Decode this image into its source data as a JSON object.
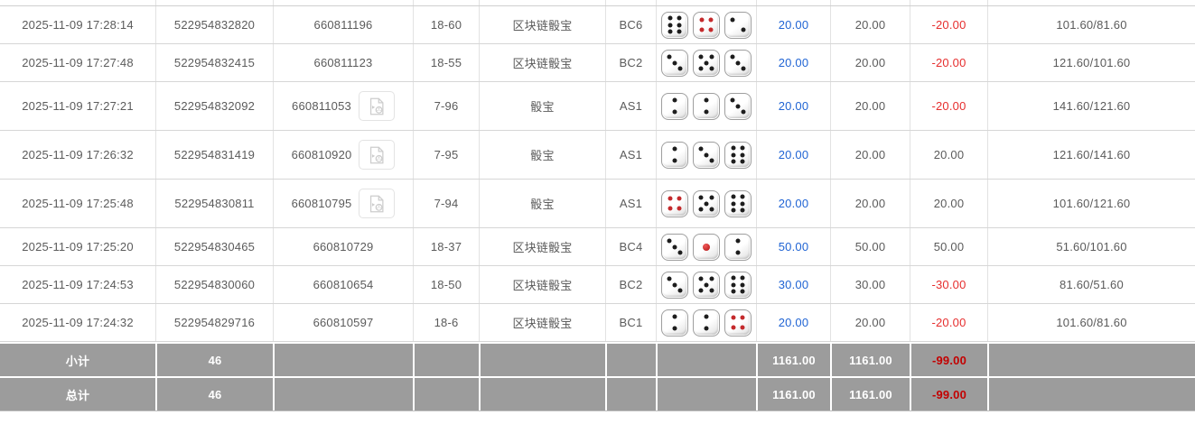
{
  "colors": {
    "link_blue": "#2064d4",
    "loss_red": "#e62e2e",
    "summary_bg": "#9c9c9c",
    "summary_loss_red": "#c30000",
    "grid_line": "#d6d6d6"
  },
  "icons": {
    "video_replay": "film-file-icon"
  },
  "table": {
    "rows": [
      {
        "time": "2025-11-09 17:28:14",
        "bet_id": "522954832820",
        "round_id": "660811196",
        "has_video": false,
        "period": "18-60",
        "game": "区块链骰宝",
        "table_code": "BC6",
        "dice": [
          "6",
          "4",
          "2d"
        ],
        "bet": "20.00",
        "valid": "20.00",
        "win_loss": "-20.00",
        "balance": "101.60/81.60"
      },
      {
        "time": "2025-11-09 17:27:48",
        "bet_id": "522954832415",
        "round_id": "660811123",
        "has_video": false,
        "period": "18-55",
        "game": "区块链骰宝",
        "table_code": "BC2",
        "dice": [
          "3",
          "5",
          "3"
        ],
        "bet": "20.00",
        "valid": "20.00",
        "win_loss": "-20.00",
        "balance": "121.60/101.60"
      },
      {
        "time": "2025-11-09 17:27:21",
        "bet_id": "522954832092",
        "round_id": "660811053",
        "has_video": true,
        "period": "7-96",
        "game": "骰宝",
        "table_code": "AS1",
        "dice": [
          "2",
          "2",
          "3"
        ],
        "bet": "20.00",
        "valid": "20.00",
        "win_loss": "-20.00",
        "balance": "141.60/121.60"
      },
      {
        "time": "2025-11-09 17:26:32",
        "bet_id": "522954831419",
        "round_id": "660810920",
        "has_video": true,
        "period": "7-95",
        "game": "骰宝",
        "table_code": "AS1",
        "dice": [
          "2",
          "3",
          "6"
        ],
        "bet": "20.00",
        "valid": "20.00",
        "win_loss": "20.00",
        "balance": "121.60/141.60"
      },
      {
        "time": "2025-11-09 17:25:48",
        "bet_id": "522954830811",
        "round_id": "660810795",
        "has_video": true,
        "period": "7-94",
        "game": "骰宝",
        "table_code": "AS1",
        "dice": [
          "4",
          "5",
          "6"
        ],
        "bet": "20.00",
        "valid": "20.00",
        "win_loss": "20.00",
        "balance": "101.60/121.60"
      },
      {
        "time": "2025-11-09 17:25:20",
        "bet_id": "522954830465",
        "round_id": "660810729",
        "has_video": false,
        "period": "18-37",
        "game": "区块链骰宝",
        "table_code": "BC4",
        "dice": [
          "3",
          "1",
          "2"
        ],
        "bet": "50.00",
        "valid": "50.00",
        "win_loss": "50.00",
        "balance": "51.60/101.60"
      },
      {
        "time": "2025-11-09 17:24:53",
        "bet_id": "522954830060",
        "round_id": "660810654",
        "has_video": false,
        "period": "18-50",
        "game": "区块链骰宝",
        "table_code": "BC2",
        "dice": [
          "3",
          "5",
          "6"
        ],
        "bet": "30.00",
        "valid": "30.00",
        "win_loss": "-30.00",
        "balance": "81.60/51.60"
      },
      {
        "time": "2025-11-09 17:24:32",
        "bet_id": "522954829716",
        "round_id": "660810597",
        "has_video": false,
        "period": "18-6",
        "game": "区块链骰宝",
        "table_code": "BC1",
        "dice": [
          "2",
          "2",
          "4"
        ],
        "bet": "20.00",
        "valid": "20.00",
        "win_loss": "-20.00",
        "balance": "101.60/81.60"
      }
    ],
    "summary_rows": [
      {
        "label": "小计",
        "count": "46",
        "bet": "1161.00",
        "valid": "1161.00",
        "win_loss": "-99.00"
      },
      {
        "label": "总计",
        "count": "46",
        "bet": "1161.00",
        "valid": "1161.00",
        "win_loss": "-99.00"
      }
    ]
  }
}
